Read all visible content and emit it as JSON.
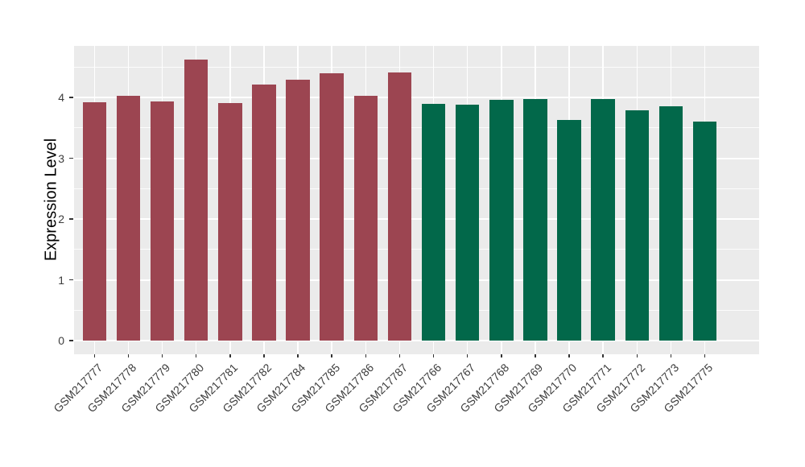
{
  "chart_data": {
    "type": "bar",
    "title": "",
    "xlabel": "",
    "ylabel": "Expression Level",
    "categories": [
      "GSM217777",
      "GSM217778",
      "GSM217779",
      "GSM217780",
      "GSM217781",
      "GSM217782",
      "GSM217784",
      "GSM217785",
      "GSM217786",
      "GSM217787",
      "GSM217766",
      "GSM217767",
      "GSM217768",
      "GSM217769",
      "GSM217770",
      "GSM217771",
      "GSM217772",
      "GSM217773",
      "GSM217775"
    ],
    "values": [
      3.92,
      4.03,
      3.93,
      4.62,
      3.91,
      4.21,
      4.29,
      4.4,
      4.03,
      4.41,
      3.89,
      3.88,
      3.96,
      3.97,
      3.63,
      3.97,
      3.79,
      3.85,
      3.6
    ],
    "bar_group_index": [
      0,
      0,
      0,
      0,
      0,
      0,
      0,
      0,
      0,
      0,
      1,
      1,
      1,
      1,
      1,
      1,
      1,
      1,
      1
    ],
    "groups": [
      {
        "name": "maroon-group",
        "color": "#9C4551"
      },
      {
        "name": "green-group",
        "color": "#02684A"
      }
    ],
    "ylim": [
      0,
      4.85
    ],
    "y_major_ticks": [
      "0",
      "1",
      "2",
      "3",
      "4"
    ],
    "y_minor_ticks": [
      0.5,
      1.5,
      2.5,
      3.5,
      4.5
    ],
    "grid": "on",
    "legend_position": "none",
    "panel_background": "#EBEBEB",
    "grid_color": "#FFFFFF",
    "axis_text_color": "#3d3d3d",
    "bar_width_fraction": 0.7
  }
}
